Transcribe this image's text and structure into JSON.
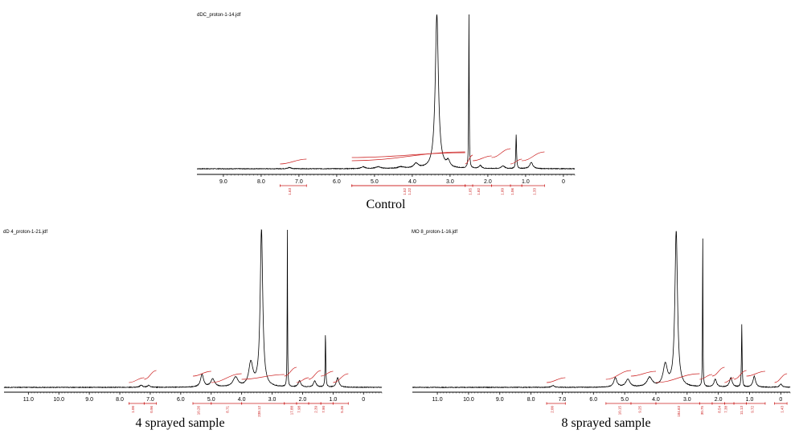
{
  "chart_data": [
    {
      "type": "line",
      "title": "Control",
      "file_label": "dDC_proton-1-14.jdf",
      "xlabel": "",
      "ylabel": "",
      "x_range_ppm": [
        9.7,
        -0.3
      ],
      "x_ticks": [
        9.0,
        8.0,
        7.0,
        6.0,
        5.0,
        4.0,
        3.0,
        2.0,
        1.0,
        0
      ],
      "tick_labels": [
        "9.0",
        "8.0",
        "7.0",
        "6.0",
        "5.0",
        "4.0",
        "3.0",
        "2.0",
        "1.0",
        "0"
      ],
      "peaks": [
        {
          "ppm": 7.25,
          "height": 0.008,
          "width": 0.05
        },
        {
          "ppm": 5.3,
          "height": 0.012,
          "width": 0.06
        },
        {
          "ppm": 4.9,
          "height": 0.012,
          "width": 0.08
        },
        {
          "ppm": 4.3,
          "height": 0.01,
          "width": 0.1
        },
        {
          "ppm": 3.9,
          "height": 0.03,
          "width": 0.07
        },
        {
          "ppm": 3.35,
          "height": 1.0,
          "width": 0.05
        },
        {
          "ppm": 3.05,
          "height": 0.04,
          "width": 0.05
        },
        {
          "ppm": 2.5,
          "height": 1.0,
          "width": 0.008
        },
        {
          "ppm": 2.2,
          "height": 0.02,
          "width": 0.04
        },
        {
          "ppm": 1.6,
          "height": 0.018,
          "width": 0.05
        },
        {
          "ppm": 1.25,
          "height": 0.22,
          "width": 0.012
        },
        {
          "ppm": 0.85,
          "height": 0.04,
          "width": 0.05
        }
      ],
      "integrals": [
        {
          "from": 7.5,
          "to": 6.8,
          "value": "1.63"
        },
        {
          "from": 5.6,
          "to": 2.6,
          "value": "1.22"
        },
        {
          "from": 5.6,
          "to": 2.6,
          "value": "1.52"
        },
        {
          "from": 2.6,
          "to": 2.4,
          "value": "1.65"
        },
        {
          "from": 2.4,
          "to": 1.9,
          "value": "1.82"
        },
        {
          "from": 1.9,
          "to": 1.4,
          "value": "1.60"
        },
        {
          "from": 1.4,
          "to": 1.1,
          "value": "1.06"
        },
        {
          "from": 1.1,
          "to": 0.5,
          "value": "1.33"
        }
      ]
    },
    {
      "type": "line",
      "title": "4 sprayed sample",
      "file_label": "dD 4_proton-1-21.jdf",
      "xlabel": "",
      "ylabel": "",
      "x_range_ppm": [
        11.8,
        -0.6
      ],
      "x_ticks": [
        11.0,
        10.0,
        9.0,
        8.0,
        7.0,
        6.0,
        5.0,
        4.0,
        3.0,
        2.0,
        1.0,
        0
      ],
      "tick_labels": [
        "11.0",
        "10.0",
        "9.0",
        "8.0",
        "7.0",
        "6.0",
        "5.0",
        "4.0",
        "3.0",
        "2.0",
        "1.0",
        "0"
      ],
      "peaks": [
        {
          "ppm": 7.3,
          "height": 0.014,
          "width": 0.05
        },
        {
          "ppm": 7.05,
          "height": 0.012,
          "width": 0.05
        },
        {
          "ppm": 5.3,
          "height": 0.08,
          "width": 0.06
        },
        {
          "ppm": 4.95,
          "height": 0.05,
          "width": 0.08
        },
        {
          "ppm": 4.2,
          "height": 0.06,
          "width": 0.1
        },
        {
          "ppm": 3.7,
          "height": 0.15,
          "width": 0.08
        },
        {
          "ppm": 3.35,
          "height": 1.0,
          "width": 0.05
        },
        {
          "ppm": 2.5,
          "height": 1.0,
          "width": 0.008
        },
        {
          "ppm": 2.1,
          "height": 0.04,
          "width": 0.05
        },
        {
          "ppm": 1.6,
          "height": 0.04,
          "width": 0.05
        },
        {
          "ppm": 1.25,
          "height": 0.34,
          "width": 0.012
        },
        {
          "ppm": 0.85,
          "height": 0.06,
          "width": 0.05
        }
      ],
      "integrals": [
        {
          "from": 7.7,
          "to": 7.2,
          "value": "1.00"
        },
        {
          "from": 7.2,
          "to": 6.8,
          "value": "0.96"
        },
        {
          "from": 5.6,
          "to": 5.0,
          "value": "10.26"
        },
        {
          "from": 5.0,
          "to": 4.0,
          "value": "8.71"
        },
        {
          "from": 4.0,
          "to": 2.6,
          "value": "238.12"
        },
        {
          "from": 2.6,
          "to": 2.2,
          "value": "17.88"
        },
        {
          "from": 2.2,
          "to": 1.8,
          "value": "7.98"
        },
        {
          "from": 1.8,
          "to": 1.4,
          "value": "2.39"
        },
        {
          "from": 1.4,
          "to": 1.0,
          "value": "7.90"
        },
        {
          "from": 1.0,
          "to": 0.5,
          "value": "5.36"
        }
      ]
    },
    {
      "type": "line",
      "title": "8 sprayed sample",
      "file_label": "MO 8_proton-1-16.jdf",
      "xlabel": "",
      "ylabel": "",
      "x_range_ppm": [
        11.8,
        -0.3
      ],
      "x_ticks": [
        11.0,
        10.0,
        9.0,
        8.0,
        7.0,
        6.0,
        5.0,
        4.0,
        3.0,
        2.0,
        1.0,
        0
      ],
      "tick_labels": [
        "11.0",
        "10.0",
        "9.0",
        "8.0",
        "7.0",
        "6.0",
        "5.0",
        "4.0",
        "3.0",
        "2.0",
        "1.0",
        "0"
      ],
      "peaks": [
        {
          "ppm": 7.3,
          "height": 0.012,
          "width": 0.05
        },
        {
          "ppm": 5.3,
          "height": 0.06,
          "width": 0.06
        },
        {
          "ppm": 4.9,
          "height": 0.05,
          "width": 0.08
        },
        {
          "ppm": 4.2,
          "height": 0.06,
          "width": 0.1
        },
        {
          "ppm": 3.7,
          "height": 0.14,
          "width": 0.08
        },
        {
          "ppm": 3.35,
          "height": 1.0,
          "width": 0.05
        },
        {
          "ppm": 2.5,
          "height": 1.0,
          "width": 0.008
        },
        {
          "ppm": 2.1,
          "height": 0.05,
          "width": 0.05
        },
        {
          "ppm": 1.6,
          "height": 0.06,
          "width": 0.05
        },
        {
          "ppm": 1.25,
          "height": 0.4,
          "width": 0.012
        },
        {
          "ppm": 0.85,
          "height": 0.07,
          "width": 0.05
        },
        {
          "ppm": 0.0,
          "height": 0.02,
          "width": 0.05
        }
      ],
      "integrals": [
        {
          "from": 7.5,
          "to": 6.9,
          "value": "2.00"
        },
        {
          "from": 5.6,
          "to": 4.8,
          "value": "10.15"
        },
        {
          "from": 4.8,
          "to": 4.0,
          "value": "9.25"
        },
        {
          "from": 4.0,
          "to": 2.6,
          "value": "184.63"
        },
        {
          "from": 2.6,
          "to": 2.2,
          "value": "30.75"
        },
        {
          "from": 2.2,
          "to": 1.8,
          "value": "8.54"
        },
        {
          "from": 1.8,
          "to": 1.5,
          "value": "7.38"
        },
        {
          "from": 1.5,
          "to": 1.1,
          "value": "11.13"
        },
        {
          "from": 1.1,
          "to": 0.5,
          "value": "9.72"
        },
        {
          "from": 0.2,
          "to": -0.2,
          "value": "1.43"
        }
      ]
    }
  ],
  "colors": {
    "spectrum": "#000000",
    "integral": "#cc2020",
    "axis": "#000000"
  }
}
